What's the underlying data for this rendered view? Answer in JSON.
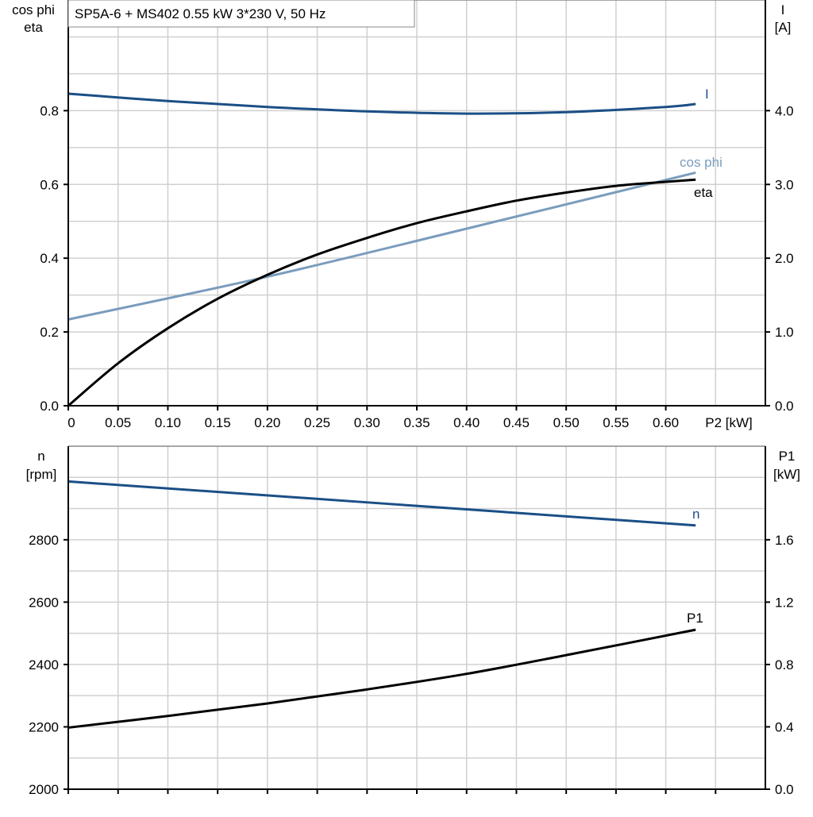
{
  "title": "SP5A-6 + MS402   0.55 kW   3*230 V, 50 Hz",
  "chart_data": [
    {
      "type": "line",
      "xlabel": "P2 [kW]",
      "xlim": [
        0,
        0.7
      ],
      "xticks": [
        "0",
        "0.05",
        "0.10",
        "0.15",
        "0.20",
        "0.25",
        "0.30",
        "0.35",
        "0.40",
        "0.45",
        "0.50",
        "0.55",
        "0.60"
      ],
      "ylabel_left": [
        "cos phi",
        "eta"
      ],
      "ylim_left": [
        0,
        1.1
      ],
      "yticks_left": [
        "0.0",
        "0.2",
        "0.4",
        "0.6",
        "0.8"
      ],
      "ylabel_right": [
        "I",
        "[A]"
      ],
      "ylim_right": [
        0,
        5.5
      ],
      "yticks_right": [
        "0.0",
        "1.0",
        "2.0",
        "3.0",
        "4.0"
      ],
      "grid": true,
      "series": [
        {
          "name": "I",
          "axis": "right",
          "color": "#1a4f86",
          "x": [
            0,
            0.1,
            0.2,
            0.3,
            0.4,
            0.5,
            0.6,
            0.63
          ],
          "y": [
            4.23,
            4.13,
            4.05,
            3.99,
            3.96,
            3.98,
            4.05,
            4.09
          ]
        },
        {
          "name": "cos phi",
          "axis": "left",
          "color": "#7a9cbd",
          "x": [
            0,
            0.2,
            0.4,
            0.63
          ],
          "y": [
            0.234,
            0.35,
            0.48,
            0.632
          ]
        },
        {
          "name": "eta",
          "axis": "left",
          "color": "#000000",
          "x": [
            0,
            0.05,
            0.1,
            0.15,
            0.2,
            0.25,
            0.3,
            0.35,
            0.4,
            0.45,
            0.5,
            0.55,
            0.6,
            0.63
          ],
          "y": [
            0,
            0.115,
            0.21,
            0.29,
            0.355,
            0.41,
            0.455,
            0.495,
            0.527,
            0.556,
            0.578,
            0.596,
            0.607,
            0.613
          ]
        }
      ]
    },
    {
      "type": "line",
      "xlim": [
        0,
        0.7
      ],
      "ylabel_left": [
        "n",
        "[rpm]"
      ],
      "ylim_left": [
        2000,
        3100
      ],
      "yticks_left": [
        "2000",
        "2200",
        "2400",
        "2600",
        "2800"
      ],
      "ylabel_right": [
        "P1",
        "[kW]"
      ],
      "ylim_right": [
        0,
        2.2
      ],
      "yticks_right": [
        "0.0",
        "0.4",
        "0.8",
        "1.2",
        "1.6"
      ],
      "grid": true,
      "series": [
        {
          "name": "n",
          "axis": "left",
          "color": "#1a4f86",
          "x": [
            0,
            0.63
          ],
          "y": [
            2987,
            2846
          ]
        },
        {
          "name": "P1",
          "axis": "right",
          "color": "#000000",
          "x": [
            0,
            0.1,
            0.2,
            0.3,
            0.4,
            0.5,
            0.63
          ],
          "y": [
            0.395,
            0.47,
            0.55,
            0.64,
            0.74,
            0.86,
            1.023
          ]
        }
      ]
    }
  ]
}
